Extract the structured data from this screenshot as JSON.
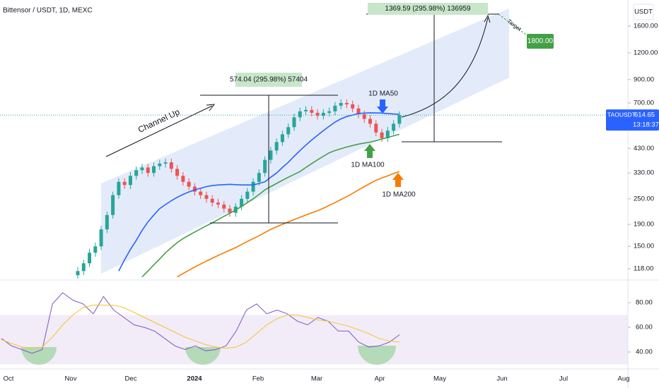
{
  "chart_data": [
    {
      "type": "candlestick",
      "title": "Bittensor / USDT, 1D, MEXC",
      "currency": "USDT",
      "symbol": "TAOUSDT",
      "last_price": {
        "value": 614.65,
        "label": "614.65"
      },
      "countdown": "13:18:37",
      "log_scale": true,
      "ylim": [
        106,
        2117
      ],
      "yticks": [
        {
          "value": 118,
          "label": "118.00"
        },
        {
          "value": 150,
          "label": "150.00"
        },
        {
          "value": 190,
          "label": "190.00"
        },
        {
          "value": 250,
          "label": "250.00"
        },
        {
          "value": 330,
          "label": "330.00"
        },
        {
          "value": 430,
          "label": "430.00"
        },
        {
          "value": 700,
          "label": "700.00"
        },
        {
          "value": 900,
          "label": "900.00"
        },
        {
          "value": 1200,
          "label": "1200.00"
        },
        {
          "value": 1600,
          "label": "1600.00"
        }
      ],
      "xtick_labels": [
        "Oct",
        "Nov",
        "Dec",
        "2024",
        "Feb",
        "Mar",
        "Apr",
        "May",
        "Jun",
        "Jul",
        "Aug"
      ],
      "up_color": "#26a69a",
      "down_color": "#ef5350",
      "open": [
        110,
        115,
        125,
        140,
        150,
        180,
        210,
        260,
        300,
        290,
        320,
        340,
        350,
        330,
        355,
        365,
        370,
        345,
        320,
        300,
        285,
        270,
        260,
        250,
        240,
        235,
        225,
        215,
        230,
        250,
        270,
        300,
        330,
        380,
        420,
        460,
        500,
        540,
        600,
        640,
        650,
        630,
        610,
        630,
        640,
        680,
        700,
        690,
        660,
        620,
        590,
        560,
        510,
        480,
        520,
        560
      ],
      "high": [
        120,
        130,
        146,
        156,
        187,
        218,
        270,
        312,
        312,
        333,
        354,
        364,
        364,
        369,
        380,
        385,
        385,
        359,
        333,
        312,
        296,
        281,
        270,
        260,
        250,
        244,
        234,
        239,
        260,
        281,
        312,
        343,
        395,
        437,
        478,
        520,
        562,
        624,
        666,
        676,
        676,
        655,
        655,
        666,
        707,
        728,
        728,
        718,
        686,
        645,
        614,
        582,
        530,
        541,
        582,
        640
      ],
      "low": [
        106,
        110,
        120,
        134,
        144,
        173,
        202,
        250,
        278,
        278,
        307,
        326,
        317,
        317,
        341,
        350,
        331,
        307,
        288,
        274,
        259,
        250,
        240,
        230,
        226,
        216,
        206,
        206,
        221,
        240,
        259,
        288,
        317,
        365,
        403,
        442,
        480,
        518,
        576,
        614,
        605,
        586,
        586,
        605,
        614,
        653,
        662,
        634,
        595,
        566,
        538,
        490,
        461,
        461,
        499,
        538
      ],
      "close": [
        115,
        125,
        140,
        150,
        180,
        210,
        260,
        300,
        290,
        320,
        340,
        350,
        330,
        355,
        365,
        370,
        345,
        320,
        300,
        285,
        270,
        260,
        250,
        240,
        235,
        225,
        215,
        230,
        250,
        270,
        300,
        330,
        380,
        420,
        460,
        500,
        540,
        600,
        640,
        650,
        630,
        610,
        630,
        640,
        680,
        700,
        690,
        660,
        620,
        590,
        560,
        510,
        480,
        520,
        560,
        615
      ],
      "series": [
        {
          "name": "1D MA50",
          "color": "#2962ff",
          "values": [
            null,
            null,
            null,
            null,
            null,
            null,
            null,
            115,
            130,
            145,
            160,
            178,
            195,
            210,
            225,
            235,
            245,
            254,
            262,
            269,
            275,
            280,
            285,
            288,
            290,
            291,
            292,
            291,
            290,
            290,
            290,
            295,
            300,
            315,
            330,
            350,
            370,
            395,
            420,
            445,
            470,
            495,
            520,
            545,
            570,
            590,
            605,
            615,
            625,
            628,
            630,
            629,
            628,
            625,
            622,
            620
          ]
        },
        {
          "name": "1D MA100",
          "color": "#43a047",
          "values": [
            null,
            null,
            null,
            null,
            null,
            null,
            null,
            null,
            null,
            null,
            null,
            108,
            115,
            123,
            131,
            140,
            148,
            156,
            163,
            169,
            175,
            181,
            187,
            193,
            200,
            207,
            214,
            222,
            230,
            240,
            250,
            262,
            275,
            285,
            295,
            305,
            315,
            325,
            335,
            350,
            365,
            380,
            395,
            410,
            420,
            428,
            436,
            443,
            450,
            455,
            460,
            467,
            475,
            483,
            492,
            500
          ]
        },
        {
          "name": "1D MA200",
          "color": "#f57c00",
          "values": [
            null,
            null,
            null,
            null,
            null,
            null,
            null,
            null,
            null,
            null,
            null,
            null,
            null,
            null,
            null,
            null,
            null,
            108,
            112,
            116,
            120,
            124,
            128,
            132,
            136,
            140,
            144,
            148,
            153,
            158,
            163,
            168,
            174,
            180,
            185,
            190,
            195,
            200,
            205,
            210,
            215,
            220,
            226,
            233,
            240,
            248,
            256,
            265,
            275,
            285,
            295,
            305,
            313,
            320,
            328,
            335
          ]
        }
      ],
      "annotations": {
        "channel": "Channel Up",
        "measure_1": "574.04 (295.98%) 57404",
        "measure_2": "1369.59 (295.98%) 136959",
        "target": "Target",
        "target_price": "1800.00"
      }
    },
    {
      "type": "line",
      "ylim": [
        28,
        96.6
      ],
      "yticks": [
        {
          "value": 40,
          "label": "40.00"
        },
        {
          "value": 60,
          "label": "60.00"
        },
        {
          "value": 80,
          "label": "80.00"
        }
      ],
      "band": [
        30,
        70
      ],
      "series": [
        {
          "color": "#7e57c2",
          "values": [
            51,
            45,
            42,
            39,
            42,
            79,
            88,
            82,
            79,
            71,
            85,
            74,
            68,
            62,
            60,
            57,
            51,
            45,
            42,
            45,
            41,
            42,
            45,
            57,
            74,
            79,
            71,
            74,
            71,
            65,
            62,
            68,
            65,
            57,
            57,
            48,
            44,
            45,
            48,
            54
          ]
        },
        {
          "color": "#fbc02d",
          "values": [
            50,
            47,
            44,
            43,
            44,
            52,
            62,
            70,
            76,
            78,
            78,
            78,
            76,
            72,
            68,
            64,
            60,
            56,
            52,
            49,
            46,
            44,
            43,
            44,
            48,
            55,
            62,
            67,
            70,
            70,
            68,
            66,
            65,
            63,
            61,
            58,
            55,
            51,
            49,
            48
          ]
        }
      ]
    }
  ]
}
